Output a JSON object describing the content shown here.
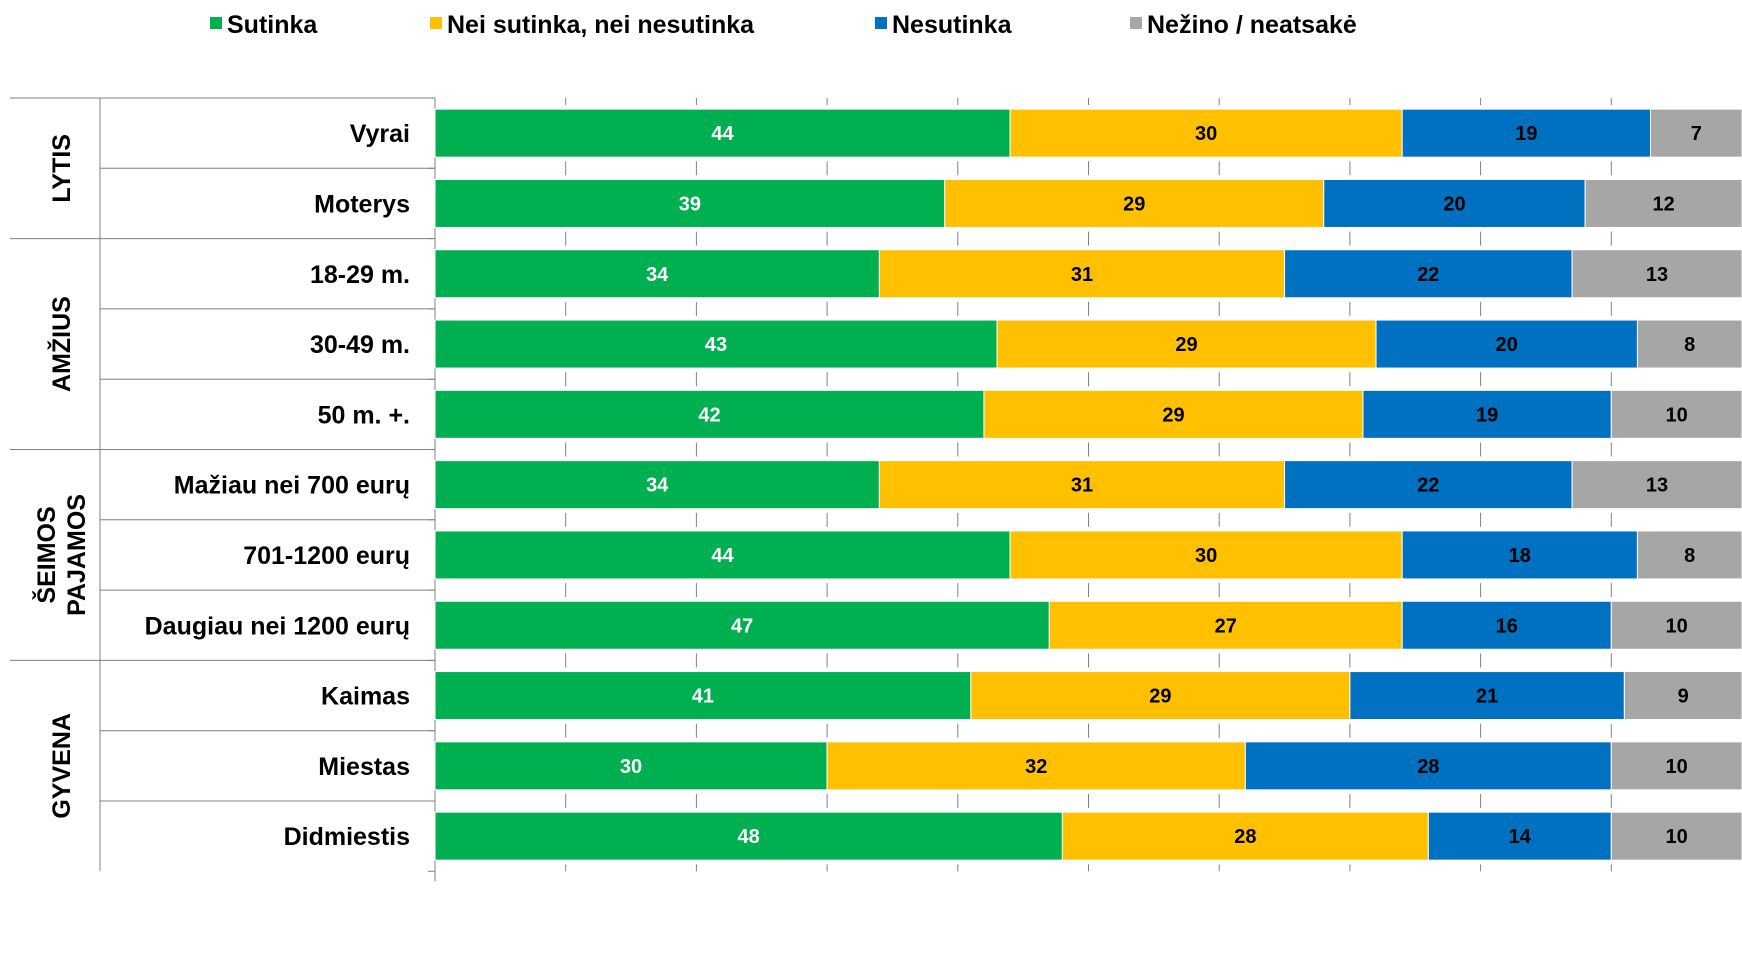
{
  "chart_data": {
    "type": "bar",
    "orientation": "horizontal",
    "stacked": true,
    "legend_position": "top",
    "grid": false,
    "xlim": [
      0,
      100
    ],
    "series": [
      {
        "name": "Sutinka",
        "color": "#00B050",
        "label_color": "#ffffff",
        "values": [
          44,
          39,
          34,
          43,
          42,
          34,
          44,
          47,
          41,
          30,
          48
        ]
      },
      {
        "name": "Nei sutinka, nei nesutinka",
        "color": "#FFC000",
        "label_color": "#000000",
        "values": [
          30,
          29,
          31,
          29,
          29,
          31,
          30,
          27,
          29,
          32,
          28
        ]
      },
      {
        "name": "Nesutinka",
        "color": "#0070C0",
        "label_color": "#000000",
        "values": [
          19,
          20,
          22,
          20,
          19,
          22,
          18,
          16,
          21,
          28,
          14
        ]
      },
      {
        "name": "Nežino / neatsakė",
        "color": "#A6A6A6",
        "label_color": "#000000",
        "values": [
          7,
          12,
          13,
          8,
          10,
          13,
          8,
          10,
          9,
          10,
          10
        ]
      }
    ],
    "categories": [
      "Vyrai",
      "Moterys",
      "18-29 m.",
      "30-49 m.",
      "50 m. +.",
      "Mažiau nei 700 eurų",
      "701-1200 eurų",
      "Daugiau nei 1200 eurų",
      "Kaimas",
      "Miestas",
      "Didmiestis"
    ],
    "groups": [
      {
        "label_lines": [
          "LYTIS"
        ],
        "start": 0,
        "count": 2
      },
      {
        "label_lines": [
          "AMŽIUS"
        ],
        "start": 2,
        "count": 3
      },
      {
        "label_lines": [
          "ŠEIMOS",
          "PAJAMOS"
        ],
        "start": 5,
        "count": 3
      },
      {
        "label_lines": [
          "GYVENA"
        ],
        "start": 8,
        "count": 3
      }
    ]
  }
}
